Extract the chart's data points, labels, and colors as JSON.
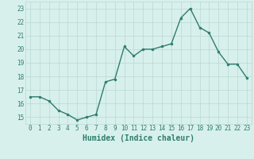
{
  "x": [
    0,
    1,
    2,
    3,
    4,
    5,
    6,
    7,
    8,
    9,
    10,
    11,
    12,
    13,
    14,
    15,
    16,
    17,
    18,
    19,
    20,
    21,
    22,
    23
  ],
  "y": [
    16.5,
    16.5,
    16.2,
    15.5,
    15.2,
    14.8,
    15.0,
    15.2,
    17.6,
    17.8,
    20.2,
    19.5,
    20.0,
    20.0,
    20.2,
    20.4,
    22.3,
    23.0,
    21.6,
    21.2,
    19.8,
    18.9,
    18.9,
    17.9
  ],
  "line_color": "#2e7d6e",
  "marker": "o",
  "marker_size": 2.0,
  "bg_color": "#d8f0ec",
  "grid_color": "#b8d8d2",
  "xlabel": "Humidex (Indice chaleur)",
  "ylabel": "",
  "xlim": [
    -0.5,
    23.5
  ],
  "ylim": [
    14.5,
    23.5
  ],
  "yticks": [
    15,
    16,
    17,
    18,
    19,
    20,
    21,
    22,
    23
  ],
  "xticks": [
    0,
    1,
    2,
    3,
    4,
    5,
    6,
    7,
    8,
    9,
    10,
    11,
    12,
    13,
    14,
    15,
    16,
    17,
    18,
    19,
    20,
    21,
    22,
    23
  ],
  "tick_label_fontsize": 5.5,
  "xlabel_fontsize": 7.0,
  "line_width": 1.0
}
